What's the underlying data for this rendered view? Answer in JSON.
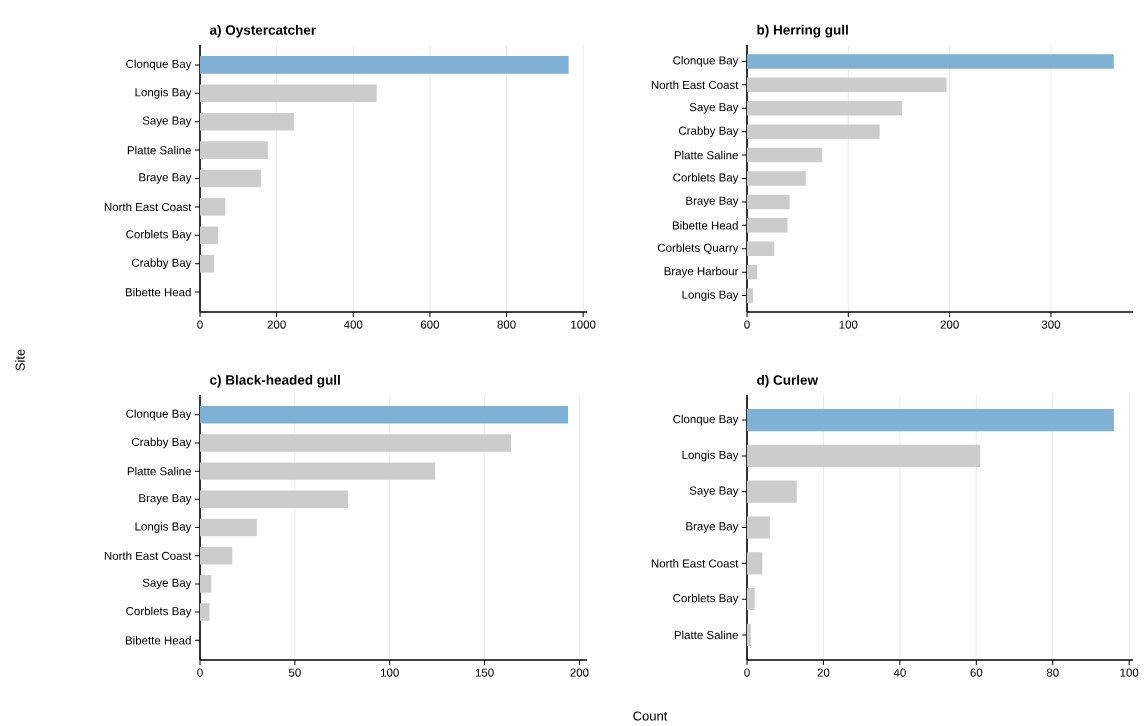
{
  "chart_data": [
    {
      "type": "bar",
      "orientation": "horizontal",
      "title": "a) Oystercatcher",
      "grid": "x",
      "categories": [
        "Clonque Bay",
        "Longis Bay",
        "Saye Bay",
        "Platte Saline",
        "Braye Bay",
        "North East Coast",
        "Corblets Bay",
        "Crabby Bay",
        "Bibette Head"
      ],
      "values": [
        962,
        461,
        245,
        177,
        159,
        66,
        47,
        37,
        0
      ],
      "colors": [
        "#7fb1d6",
        "#cccccc",
        "#cccccc",
        "#cccccc",
        "#cccccc",
        "#cccccc",
        "#cccccc",
        "#cccccc",
        "#cccccc"
      ],
      "xlim": [
        0,
        1010
      ],
      "xticks": [
        0,
        200,
        400,
        600,
        800,
        1000
      ]
    },
    {
      "type": "bar",
      "orientation": "horizontal",
      "title": "b) Herring gull",
      "grid": "x",
      "categories": [
        "Clonque Bay",
        "North East Coast",
        "Saye Bay",
        "Crabby Bay",
        "Platte Saline",
        "Corblets Bay",
        "Braye Bay",
        "Bibette Head",
        "Corblets Quarry",
        "Braye Harbour",
        "Longis Bay"
      ],
      "values": [
        362,
        197,
        153,
        131,
        74,
        58,
        42,
        40,
        27,
        10,
        6
      ],
      "colors": [
        "#7fb1d6",
        "#cccccc",
        "#cccccc",
        "#cccccc",
        "#cccccc",
        "#cccccc",
        "#cccccc",
        "#cccccc",
        "#cccccc",
        "#cccccc",
        "#cccccc"
      ],
      "xlim": [
        0,
        381
      ],
      "xticks": [
        0,
        100,
        200,
        300
      ]
    },
    {
      "type": "bar",
      "orientation": "horizontal",
      "title": "c) Black-headed gull",
      "ylabel": "Site",
      "xlabel": "Count",
      "grid": "x",
      "categories": [
        "Clonque Bay",
        "Crabby Bay",
        "Platte Saline",
        "Braye Bay",
        "Longis Bay",
        "North East Coast",
        "Saye Bay",
        "Corblets Bay",
        "Bibette Head"
      ],
      "values": [
        194,
        164,
        124,
        78,
        30,
        17,
        6,
        5,
        0
      ],
      "colors": [
        "#7fb1d6",
        "#cccccc",
        "#cccccc",
        "#cccccc",
        "#cccccc",
        "#cccccc",
        "#cccccc",
        "#cccccc",
        "#cccccc"
      ],
      "xlim": [
        0,
        204
      ],
      "xticks": [
        0,
        50,
        100,
        150,
        200
      ]
    },
    {
      "type": "bar",
      "orientation": "horizontal",
      "title": "d) Curlew",
      "grid": "x",
      "categories": [
        "Clonque Bay",
        "Longis Bay",
        "Saye Bay",
        "Braye Bay",
        "North East Coast",
        "Corblets Bay",
        "Platte Saline"
      ],
      "values": [
        96,
        61,
        13,
        6,
        4,
        2,
        1
      ],
      "colors": [
        "#7fb1d6",
        "#cccccc",
        "#cccccc",
        "#cccccc",
        "#cccccc",
        "#cccccc",
        "#cccccc"
      ],
      "xlim": [
        0,
        101
      ],
      "xticks": [
        0,
        20,
        40,
        60,
        80,
        100
      ]
    }
  ]
}
